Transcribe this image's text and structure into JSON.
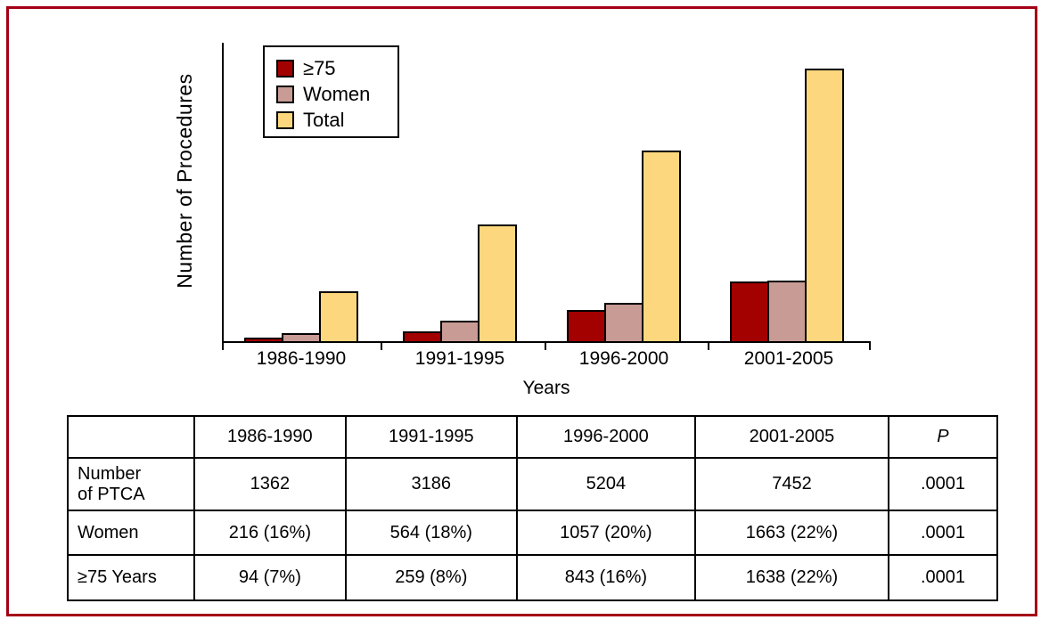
{
  "figure": {
    "border_color": "#A40016",
    "bar_outline_color": "#000000"
  },
  "chart_data": {
    "type": "bar",
    "title": "",
    "xlabel": "Years",
    "ylabel": "Number of Procedures",
    "categories": [
      "1986-1990",
      "1991-1995",
      "1996-2000",
      "2001-2005"
    ],
    "series": [
      {
        "name": "≥75",
        "color": "#A30000",
        "values": [
          94,
          259,
          843,
          1638
        ]
      },
      {
        "name": "Women",
        "color": "#C99B95",
        "values": [
          216,
          564,
          1057,
          1663
        ]
      },
      {
        "name": "Total",
        "color": "#FCD77D",
        "values": [
          1362,
          3186,
          5204,
          7452
        ]
      }
    ],
    "ylim": [
      0,
      8200
    ],
    "y_tick_labels": "none",
    "grid": false,
    "legend_position": "top-left"
  },
  "table": {
    "col_headers": [
      "",
      "1986-1990",
      "1991-1995",
      "1996-2000",
      "2001-2005",
      "P"
    ],
    "rows": [
      {
        "label": "Number\nof PTCA",
        "values": [
          "1362",
          "3186",
          "5204",
          "7452",
          ".0001"
        ]
      },
      {
        "label": "Women",
        "values": [
          "216 (16%)",
          "564 (18%)",
          "1057 (20%)",
          "1663 (22%)",
          ".0001"
        ]
      },
      {
        "label": "≥75 Years",
        "values": [
          "94 (7%)",
          "259 (8%)",
          "843 (16%)",
          "1638 (22%)",
          ".0001"
        ]
      }
    ]
  }
}
